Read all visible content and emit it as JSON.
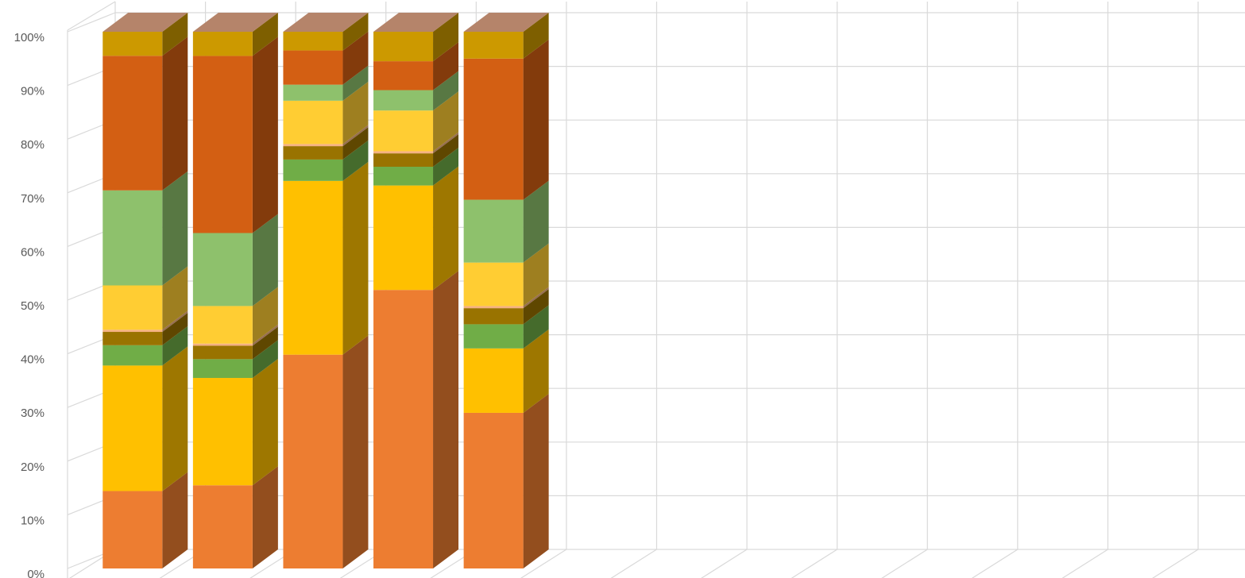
{
  "chart_data": {
    "type": "bar",
    "stacking": "percent",
    "projection": "3d",
    "title": "",
    "xlabel": "",
    "ylabel": "",
    "legend": "none",
    "grid": true,
    "ylim": [
      0,
      100
    ],
    "yticks": [
      "0%",
      "10%",
      "20%",
      "30%",
      "40%",
      "50%",
      "60%",
      "70%",
      "80%",
      "90%",
      "100%"
    ],
    "category_slots": 12,
    "categories": [
      "",
      "",
      "",
      "",
      ""
    ],
    "series": [
      {
        "color": "#ED7D31",
        "values": [
          14.5,
          15.5,
          40,
          52,
          29
        ]
      },
      {
        "color": "#FFC000",
        "values": [
          23.5,
          20,
          32.5,
          19.5,
          12
        ]
      },
      {
        "color": "#70AD47",
        "values": [
          3.8,
          3.5,
          4,
          3.5,
          4.5
        ]
      },
      {
        "color": "#997300",
        "values": [
          2.5,
          2.5,
          2.5,
          2.5,
          3
        ]
      },
      {
        "color": "#F4B183",
        "values": [
          0.4,
          0.4,
          0.4,
          0.4,
          0.4
        ]
      },
      {
        "color": "#FFCD33",
        "values": [
          8.3,
          7,
          8.1,
          7.6,
          8.1
        ]
      },
      {
        "color": "#8EC16C",
        "values": [
          17.8,
          13.6,
          3,
          3.8,
          11.7
        ]
      },
      {
        "color": "#D35F13",
        "values": [
          25.2,
          33,
          6.4,
          5.4,
          26.3
        ]
      },
      {
        "color": "#CC9900",
        "values": [
          4.5,
          4.5,
          3.5,
          5.5,
          5
        ]
      }
    ]
  }
}
